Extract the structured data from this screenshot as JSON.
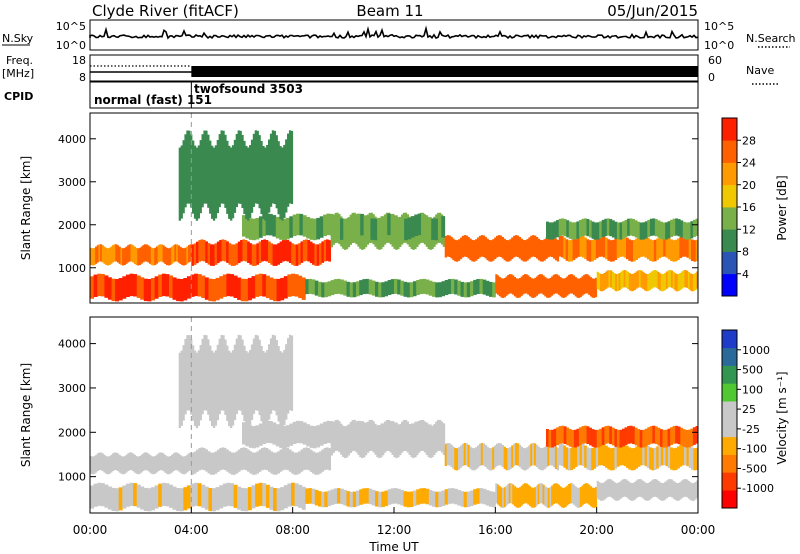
{
  "header": {
    "station": "Clyde River (fitACF)",
    "beam": "Beam 11",
    "date": "05/Jun/2015"
  },
  "nsky_panel": {
    "left_label": "N.Sky",
    "left_ticks": [
      "10^5",
      "10^0"
    ],
    "right_label": "N.Search",
    "right_ticks": [
      "10^5",
      "10^0"
    ]
  },
  "freq_panel": {
    "left_label_1": "Freq.",
    "left_label_2": "[MHz]",
    "left_ticks": [
      "18",
      "8"
    ],
    "right_label": "Nave",
    "right_ticks": [
      "60",
      "0"
    ]
  },
  "cpid": {
    "label": "CPID",
    "modes": [
      {
        "name": "normal (fast)",
        "id": "151",
        "start_hour": 0
      },
      {
        "name": "twofsound",
        "id": "3503",
        "start_hour": 4.0
      }
    ]
  },
  "colors": {
    "power_scale": [
      "#0000ff",
      "#2a55b5",
      "#3a8a50",
      "#7ab04a",
      "#f0c800",
      "#ff9a00",
      "#ff6000",
      "#ff2000"
    ],
    "velocity_scale": [
      "#ff0000",
      "#ff3a00",
      "#ff7a00",
      "#ffaa00",
      "#c8c8c8",
      "#c8c8c8",
      "#50c832",
      "#329650",
      "#2a6a9a",
      "#1e3cc8"
    ]
  },
  "chart_data": [
    {
      "type": "heatmap",
      "panel": "power",
      "ylabel": "Slant Range [km]",
      "ylim": [
        180,
        4600
      ],
      "y_ticks": [
        1000,
        2000,
        3000,
        4000
      ],
      "xlim": [
        0,
        24
      ],
      "colorbar_label": "Power [dB]",
      "colorbar_ticks": [
        "4",
        "8",
        "12",
        "16",
        "20",
        "24",
        "28"
      ],
      "colorbar_range": [
        0,
        32
      ],
      "bands": [
        {
          "start": 0.0,
          "end": 8.5,
          "min": 280,
          "max": 800,
          "value": 28
        },
        {
          "start": 8.5,
          "end": 16.0,
          "min": 350,
          "max": 700,
          "value": 12
        },
        {
          "start": 16.0,
          "end": 20.0,
          "min": 350,
          "max": 800,
          "value": 26
        },
        {
          "start": 20.0,
          "end": 24.0,
          "min": 500,
          "max": 900,
          "value": 20
        },
        {
          "start": 0.0,
          "end": 4.0,
          "min": 1100,
          "max": 1500,
          "value": 24
        },
        {
          "start": 4.0,
          "end": 9.5,
          "min": 1100,
          "max": 1600,
          "value": 28
        },
        {
          "start": 9.5,
          "end": 14.0,
          "min": 1500,
          "max": 2200,
          "value": 14
        },
        {
          "start": 14.0,
          "end": 18.5,
          "min": 1200,
          "max": 1700,
          "value": 26
        },
        {
          "start": 18.5,
          "end": 24.0,
          "min": 1200,
          "max": 1700,
          "value": 24
        },
        {
          "start": 6.0,
          "end": 14.0,
          "min": 1700,
          "max": 2200,
          "value": 12
        },
        {
          "start": 18.0,
          "end": 24.0,
          "min": 1700,
          "max": 2100,
          "value": 12
        },
        {
          "start": 3.5,
          "end": 8.0,
          "min": 2300,
          "max": 4000,
          "value": 10
        }
      ]
    },
    {
      "type": "heatmap",
      "panel": "velocity",
      "ylabel": "Slant Range [km]",
      "xlabel": "Time UT",
      "x_ticks": [
        "00:00",
        "04:00",
        "08:00",
        "12:00",
        "16:00",
        "20:00",
        "00:00"
      ],
      "ylim": [
        180,
        4600
      ],
      "y_ticks": [
        1000,
        2000,
        3000,
        4000
      ],
      "xlim": [
        0,
        24
      ],
      "colorbar_label": "Velocity [m s⁻¹]",
      "colorbar_ticks": [
        "-1000",
        "-500",
        "-100",
        "-25",
        "25",
        "100",
        "500",
        "1000"
      ],
      "colorbar_range": [
        -1200,
        1200
      ],
      "bands": [
        {
          "start": 0.0,
          "end": 8.5,
          "min": 280,
          "max": 800,
          "value": -200
        },
        {
          "start": 8.5,
          "end": 16.0,
          "min": 350,
          "max": 700,
          "value": -200
        },
        {
          "start": 16.0,
          "end": 20.0,
          "min": 350,
          "max": 800,
          "value": -300
        },
        {
          "start": 20.0,
          "end": 24.0,
          "min": 500,
          "max": 900,
          "value": 0
        },
        {
          "start": 0.0,
          "end": 4.0,
          "min": 1100,
          "max": 1500,
          "value": 0
        },
        {
          "start": 4.0,
          "end": 9.5,
          "min": 1100,
          "max": 1600,
          "value": 0
        },
        {
          "start": 9.5,
          "end": 14.0,
          "min": 1500,
          "max": 2200,
          "value": 0
        },
        {
          "start": 14.0,
          "end": 18.5,
          "min": 1200,
          "max": 1700,
          "value": -200
        },
        {
          "start": 18.5,
          "end": 24.0,
          "min": 1200,
          "max": 1700,
          "value": -300
        },
        {
          "start": 6.0,
          "end": 14.0,
          "min": 1700,
          "max": 2200,
          "value": 0
        },
        {
          "start": 18.0,
          "end": 24.0,
          "min": 1700,
          "max": 2100,
          "value": -700
        },
        {
          "start": 3.5,
          "end": 8.0,
          "min": 2300,
          "max": 4000,
          "value": 0
        }
      ]
    }
  ]
}
